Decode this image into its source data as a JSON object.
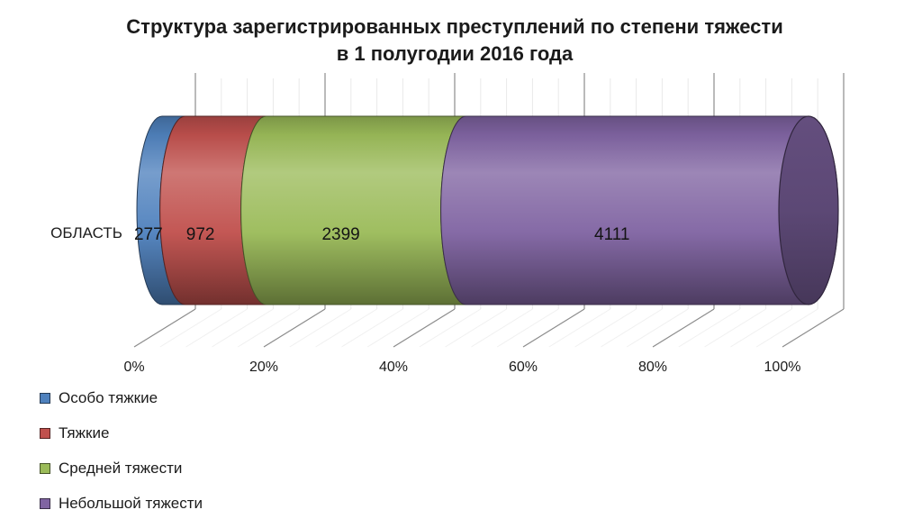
{
  "header": {
    "title_line1": "Структура зарегистрированных преступлений по степени тяжести",
    "title_line2": "в 1 полугодии 2016 года"
  },
  "chart_data": {
    "type": "bar",
    "variant": "3d-cylinder-100%-stacked-horizontal",
    "title": "Структура зарегистрированных преступлений по степени тяжести в 1 полугодии 2016 года",
    "categories": [
      "ОБЛАСТЬ"
    ],
    "series": [
      {
        "name": "Особо тяжкие",
        "color": "#4F81BD",
        "values": [
          277
        ]
      },
      {
        "name": "Тяжкие",
        "color": "#C0504D",
        "values": [
          972
        ]
      },
      {
        "name": "Средней тяжести",
        "color": "#9BBB59",
        "values": [
          2399
        ]
      },
      {
        "name": "Небольшой тяжести",
        "color": "#8064A2",
        "values": [
          4111
        ]
      }
    ],
    "data_labels": [
      "277",
      "972",
      "2399",
      "4111"
    ],
    "x_axis": {
      "tick_labels": [
        "0%",
        "20%",
        "40%",
        "60%",
        "80%",
        "100%"
      ],
      "min": 0,
      "max": 100,
      "major_step": 20,
      "minor_step": 4,
      "unit": "%"
    },
    "grid": true,
    "legend_position": "bottom-left",
    "text_color": "#1b1b1b",
    "gridline_major_color": "#8c8c8c",
    "gridline_minor_color": "#e9e9e9"
  }
}
